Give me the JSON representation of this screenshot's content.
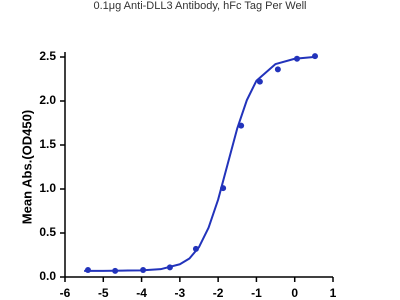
{
  "chart_data": {
    "type": "scatter-fit",
    "title": "0.1μg Anti-DLL3 Antibody, hFc Tag Per Well",
    "y_label": "Mean Abs.(OD450)",
    "xlim": [
      -6,
      1
    ],
    "xticks": [
      -6,
      -5,
      -4,
      -3,
      -2,
      -1,
      0,
      1
    ],
    "ylim": [
      0,
      2.5
    ],
    "yticks": [
      {
        "value": 0,
        "label": "0.0"
      },
      {
        "value": 0.5,
        "label": "0.5"
      },
      {
        "value": 1,
        "label": "1.0"
      },
      {
        "value": 1.5,
        "label": "1.5"
      },
      {
        "value": 2,
        "label": "2.0"
      },
      {
        "value": 2.5,
        "label": "2.5"
      }
    ],
    "series": [
      {
        "kind": "points",
        "color": "#2233bb",
        "x": [
          -5.4,
          -4.69,
          -3.96,
          -3.26,
          -2.58,
          -1.87,
          -1.4,
          -0.91,
          -0.44,
          0.06,
          0.53
        ],
        "values": [
          0.08,
          0.07,
          0.08,
          0.11,
          0.32,
          1.01,
          1.72,
          2.22,
          2.36,
          2.48,
          2.51
        ]
      },
      {
        "kind": "curve",
        "color": "#2233bb",
        "x": [
          -5.5,
          -5,
          -4.5,
          -4,
          -3.5,
          -3,
          -2.75,
          -2.5,
          -2.25,
          -2,
          -1.75,
          -1.5,
          -1.25,
          -1,
          -0.5,
          0,
          0.5
        ],
        "values": [
          0.07,
          0.07,
          0.073,
          0.075,
          0.089,
          0.145,
          0.21,
          0.34,
          0.56,
          0.88,
          1.285,
          1.69,
          2.01,
          2.23,
          2.42,
          2.48,
          2.5
        ]
      }
    ]
  }
}
